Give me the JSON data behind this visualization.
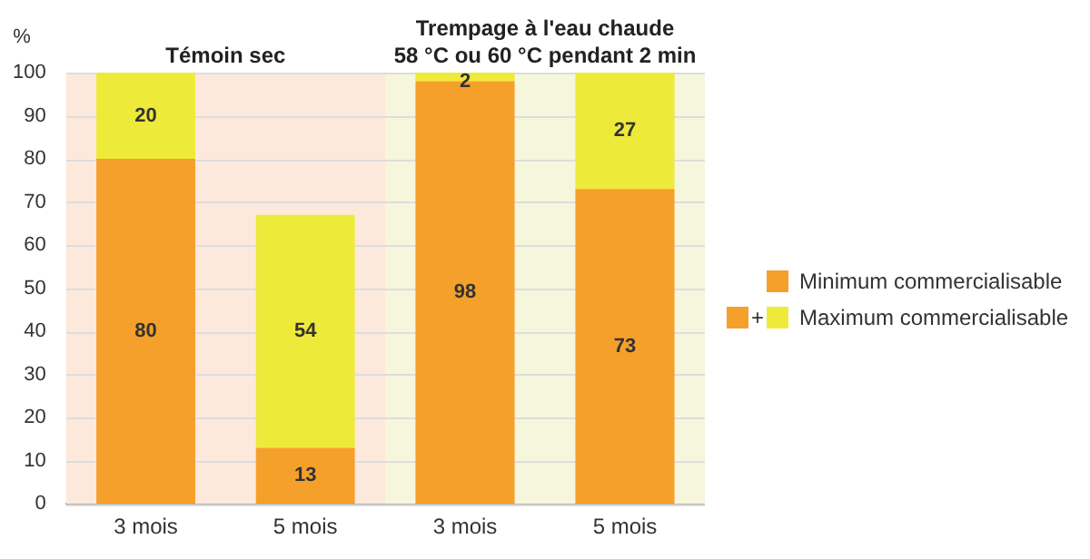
{
  "chart_data": [
    {
      "type": "bar",
      "stacked": true,
      "title": "Témoin sec",
      "ylabel": "%",
      "categories": [
        "3 mois",
        "5 mois"
      ],
      "series": [
        {
          "color": "#f5a02a",
          "values": [
            80,
            13
          ]
        },
        {
          "color": "#eeea3a",
          "values": [
            20,
            54
          ]
        }
      ],
      "ylim": [
        0,
        100
      ],
      "yticks": [
        0,
        10,
        20,
        30,
        40,
        50,
        60,
        70,
        80,
        90,
        100
      ],
      "grid": "y",
      "data_labels": true,
      "bands": [
        {
          "axis": "x",
          "from": "3 mois",
          "to": "5 mois",
          "color": "#fde9dc"
        }
      ]
    },
    {
      "type": "bar",
      "stacked": true,
      "title": "Trempage à l'eau chaude\n58 °C ou 60 °C pendant 2 min",
      "categories": [
        "3 mois",
        "5 mois"
      ],
      "series": [
        {
          "name": "Minimum commercialisable",
          "color": "#f5a02a",
          "values": [
            98,
            73
          ]
        },
        {
          "name": "Maximum commercialisable",
          "color": "#eeea3a",
          "values": [
            2,
            27
          ]
        }
      ],
      "ylim": [
        0,
        100
      ],
      "yticks": [
        0,
        10,
        20,
        30,
        40,
        50,
        60,
        70,
        80,
        90,
        100
      ],
      "tick_labels": "x",
      "grid": "y",
      "legend": "right",
      "data_labels": true,
      "bands": [
        {
          "axis": "x",
          "from": "3 mois",
          "to": "5 mois",
          "color": "#f6f6dc"
        }
      ],
      "annotations": [
        "+"
      ]
    }
  ]
}
